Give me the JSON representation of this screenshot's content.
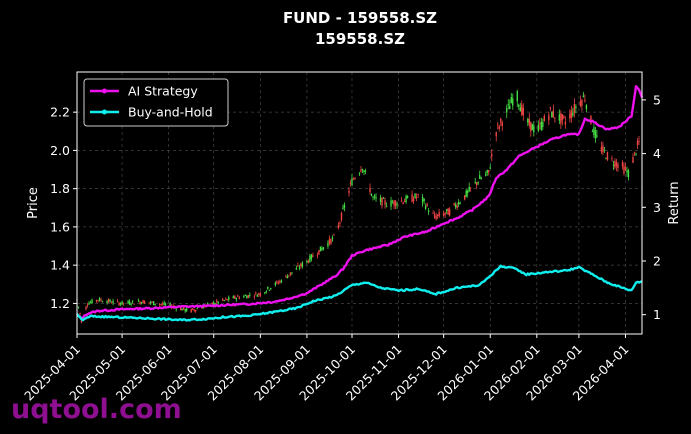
{
  "watermark": "uqtool.com",
  "chart_data": {
    "type": "line",
    "title": "FUND - 159558.SZ",
    "subtitle": "159558.SZ",
    "ylabel_left": "Price",
    "ylabel_right": "Return",
    "xlabel": "",
    "grid": true,
    "legend_position": "top-left",
    "x_range": [
      "2025-04-01",
      "2026-04-12"
    ],
    "ylim_left": [
      1.04,
      2.41
    ],
    "ylim_right": [
      0.64,
      5.52
    ],
    "x_ticks": [
      "2025-04-01",
      "2025-05-01",
      "2025-06-01",
      "2025-07-01",
      "2025-08-01",
      "2025-09-01",
      "2025-10-01",
      "2025-11-01",
      "2025-12-01",
      "2026-01-01",
      "2026-02-01",
      "2026-03-01",
      "2026-04-01"
    ],
    "y_ticks_left": [
      "1.2",
      "1.4",
      "1.6",
      "1.8",
      "2.0",
      "2.2"
    ],
    "y_ticks_right": [
      "1",
      "2",
      "3",
      "4",
      "5"
    ],
    "colors": {
      "up": "#44dd44",
      "down": "#ee4444",
      "ai": "#ee11ee",
      "bh": "#11eeee",
      "grid": "#444444"
    },
    "series": [
      {
        "name": "AI Strategy",
        "axis": "right",
        "color": "#ee11ee",
        "points": [
          [
            "2025-04-01",
            1.0
          ],
          [
            "2025-04-04",
            0.93
          ],
          [
            "2025-04-08",
            1.02
          ],
          [
            "2025-04-15",
            1.07
          ],
          [
            "2025-05-01",
            1.1
          ],
          [
            "2025-05-20",
            1.12
          ],
          [
            "2025-06-10",
            1.15
          ],
          [
            "2025-06-25",
            1.16
          ],
          [
            "2025-07-10",
            1.18
          ],
          [
            "2025-07-25",
            1.2
          ],
          [
            "2025-08-10",
            1.24
          ],
          [
            "2025-08-20",
            1.3
          ],
          [
            "2025-09-01",
            1.4
          ],
          [
            "2025-09-10",
            1.55
          ],
          [
            "2025-09-20",
            1.72
          ],
          [
            "2025-09-25",
            1.85
          ],
          [
            "2025-10-01",
            2.1
          ],
          [
            "2025-10-10",
            2.2
          ],
          [
            "2025-10-25",
            2.3
          ],
          [
            "2025-11-05",
            2.45
          ],
          [
            "2025-11-20",
            2.55
          ],
          [
            "2025-12-01",
            2.7
          ],
          [
            "2025-12-10",
            2.8
          ],
          [
            "2025-12-20",
            2.95
          ],
          [
            "2025-12-31",
            3.2
          ],
          [
            "2026-01-05",
            3.55
          ],
          [
            "2026-01-12",
            3.7
          ],
          [
            "2026-01-20",
            3.95
          ],
          [
            "2026-01-30",
            4.1
          ],
          [
            "2026-02-10",
            4.25
          ],
          [
            "2026-02-20",
            4.35
          ],
          [
            "2026-03-01",
            4.36
          ],
          [
            "2026-03-05",
            4.65
          ],
          [
            "2026-03-10",
            4.6
          ],
          [
            "2026-03-20",
            4.45
          ],
          [
            "2026-03-28",
            4.5
          ],
          [
            "2026-04-05",
            4.7
          ],
          [
            "2026-04-08",
            5.25
          ],
          [
            "2026-04-10",
            5.2
          ],
          [
            "2026-04-12",
            5.05
          ]
        ]
      },
      {
        "name": "Buy-and-Hold",
        "axis": "right",
        "color": "#11eeee",
        "points": [
          [
            "2025-04-01",
            1.0
          ],
          [
            "2025-04-05",
            0.9
          ],
          [
            "2025-04-10",
            0.97
          ],
          [
            "2025-05-01",
            0.95
          ],
          [
            "2025-05-20",
            0.93
          ],
          [
            "2025-06-10",
            0.9
          ],
          [
            "2025-06-25",
            0.92
          ],
          [
            "2025-07-10",
            0.96
          ],
          [
            "2025-07-25",
            0.98
          ],
          [
            "2025-08-10",
            1.05
          ],
          [
            "2025-08-25",
            1.12
          ],
          [
            "2025-09-05",
            1.25
          ],
          [
            "2025-09-20",
            1.35
          ],
          [
            "2025-10-01",
            1.55
          ],
          [
            "2025-10-10",
            1.6
          ],
          [
            "2025-10-20",
            1.5
          ],
          [
            "2025-11-01",
            1.45
          ],
          [
            "2025-11-15",
            1.48
          ],
          [
            "2025-11-25",
            1.38
          ],
          [
            "2025-12-10",
            1.5
          ],
          [
            "2025-12-25",
            1.55
          ],
          [
            "2025-12-31",
            1.7
          ],
          [
            "2026-01-08",
            1.9
          ],
          [
            "2026-01-15",
            1.88
          ],
          [
            "2026-01-25",
            1.75
          ],
          [
            "2026-02-10",
            1.8
          ],
          [
            "2026-02-20",
            1.82
          ],
          [
            "2026-03-01",
            1.88
          ],
          [
            "2026-03-10",
            1.75
          ],
          [
            "2026-03-20",
            1.6
          ],
          [
            "2026-03-30",
            1.5
          ],
          [
            "2026-04-05",
            1.45
          ],
          [
            "2026-04-08",
            1.6
          ],
          [
            "2026-04-12",
            1.62
          ]
        ]
      },
      {
        "name": "Price",
        "axis": "left",
        "type": "candlestick",
        "points": [
          [
            "2025-04-01",
            1.22
          ],
          [
            "2025-04-04",
            1.11
          ],
          [
            "2025-04-08",
            1.2
          ],
          [
            "2025-04-15",
            1.22
          ],
          [
            "2025-05-01",
            1.2
          ],
          [
            "2025-05-15",
            1.21
          ],
          [
            "2025-06-01",
            1.19
          ],
          [
            "2025-06-15",
            1.16
          ],
          [
            "2025-07-01",
            1.2
          ],
          [
            "2025-07-15",
            1.23
          ],
          [
            "2025-08-01",
            1.25
          ],
          [
            "2025-08-15",
            1.32
          ],
          [
            "2025-09-01",
            1.42
          ],
          [
            "2025-09-10",
            1.48
          ],
          [
            "2025-09-20",
            1.55
          ],
          [
            "2025-09-25",
            1.68
          ],
          [
            "2025-10-01",
            1.84
          ],
          [
            "2025-10-08",
            1.92
          ],
          [
            "2025-10-15",
            1.75
          ],
          [
            "2025-10-25",
            1.72
          ],
          [
            "2025-11-05",
            1.74
          ],
          [
            "2025-11-15",
            1.76
          ],
          [
            "2025-11-25",
            1.65
          ],
          [
            "2025-12-05",
            1.68
          ],
          [
            "2025-12-15",
            1.76
          ],
          [
            "2025-12-25",
            1.85
          ],
          [
            "2025-12-31",
            1.88
          ],
          [
            "2026-01-05",
            2.1
          ],
          [
            "2026-01-12",
            2.2
          ],
          [
            "2026-01-18",
            2.3
          ],
          [
            "2026-01-25",
            2.15
          ],
          [
            "2026-02-01",
            2.1
          ],
          [
            "2026-02-10",
            2.2
          ],
          [
            "2026-02-20",
            2.15
          ],
          [
            "2026-03-01",
            2.25
          ],
          [
            "2026-03-05",
            2.28
          ],
          [
            "2026-03-10",
            2.12
          ],
          [
            "2026-03-15",
            2.02
          ],
          [
            "2026-03-22",
            1.95
          ],
          [
            "2026-03-29",
            1.92
          ],
          [
            "2026-04-03",
            1.88
          ],
          [
            "2026-04-08",
            2.0
          ],
          [
            "2026-04-12",
            2.08
          ]
        ]
      }
    ]
  }
}
